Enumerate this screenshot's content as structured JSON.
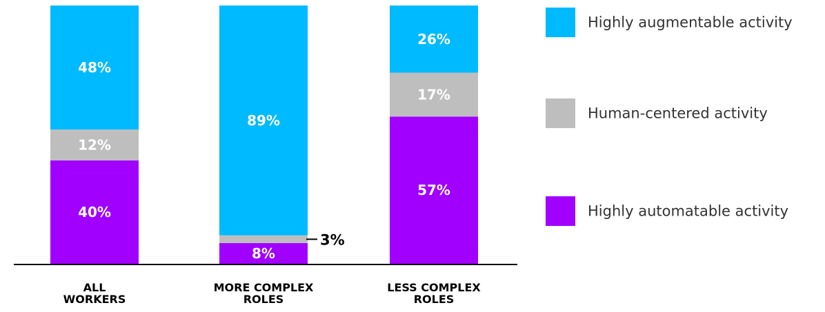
{
  "chart_data": {
    "type": "bar",
    "stacked": true,
    "orientation": "vertical",
    "normalized_percent": true,
    "categories": [
      [
        "ALL",
        "WORKERS"
      ],
      [
        "MORE COMPLEX",
        "ROLES"
      ],
      [
        "LESS COMPLEX",
        "ROLES"
      ]
    ],
    "series": [
      {
        "name": "Highly automatable activity",
        "color": "#a100ff",
        "values": [
          40,
          8,
          57
        ],
        "labels": [
          "40%",
          "8%",
          "57%"
        ]
      },
      {
        "name": "Human-centered activity",
        "color": "#bebebe",
        "values": [
          12,
          3,
          17
        ],
        "labels": [
          "12%",
          "3%",
          "17%"
        ]
      },
      {
        "name": "Highly augmentable activity",
        "color": "#00baff",
        "values": [
          48,
          89,
          26
        ],
        "labels": [
          "48%",
          "89%",
          "26%"
        ]
      }
    ],
    "legend_order": [
      {
        "name": "Highly augmentable activity",
        "color": "#00baff"
      },
      {
        "name": "Human-centered activity",
        "color": "#bebebe"
      },
      {
        "name": "Highly automatable activity",
        "color": "#a100ff"
      }
    ],
    "legend_position": "right",
    "ylim": [
      0,
      100
    ],
    "grid": false,
    "title": "",
    "xlabel": "",
    "ylabel": "",
    "label_text_color": "#ffffff",
    "callout_text_color": "#000000"
  }
}
